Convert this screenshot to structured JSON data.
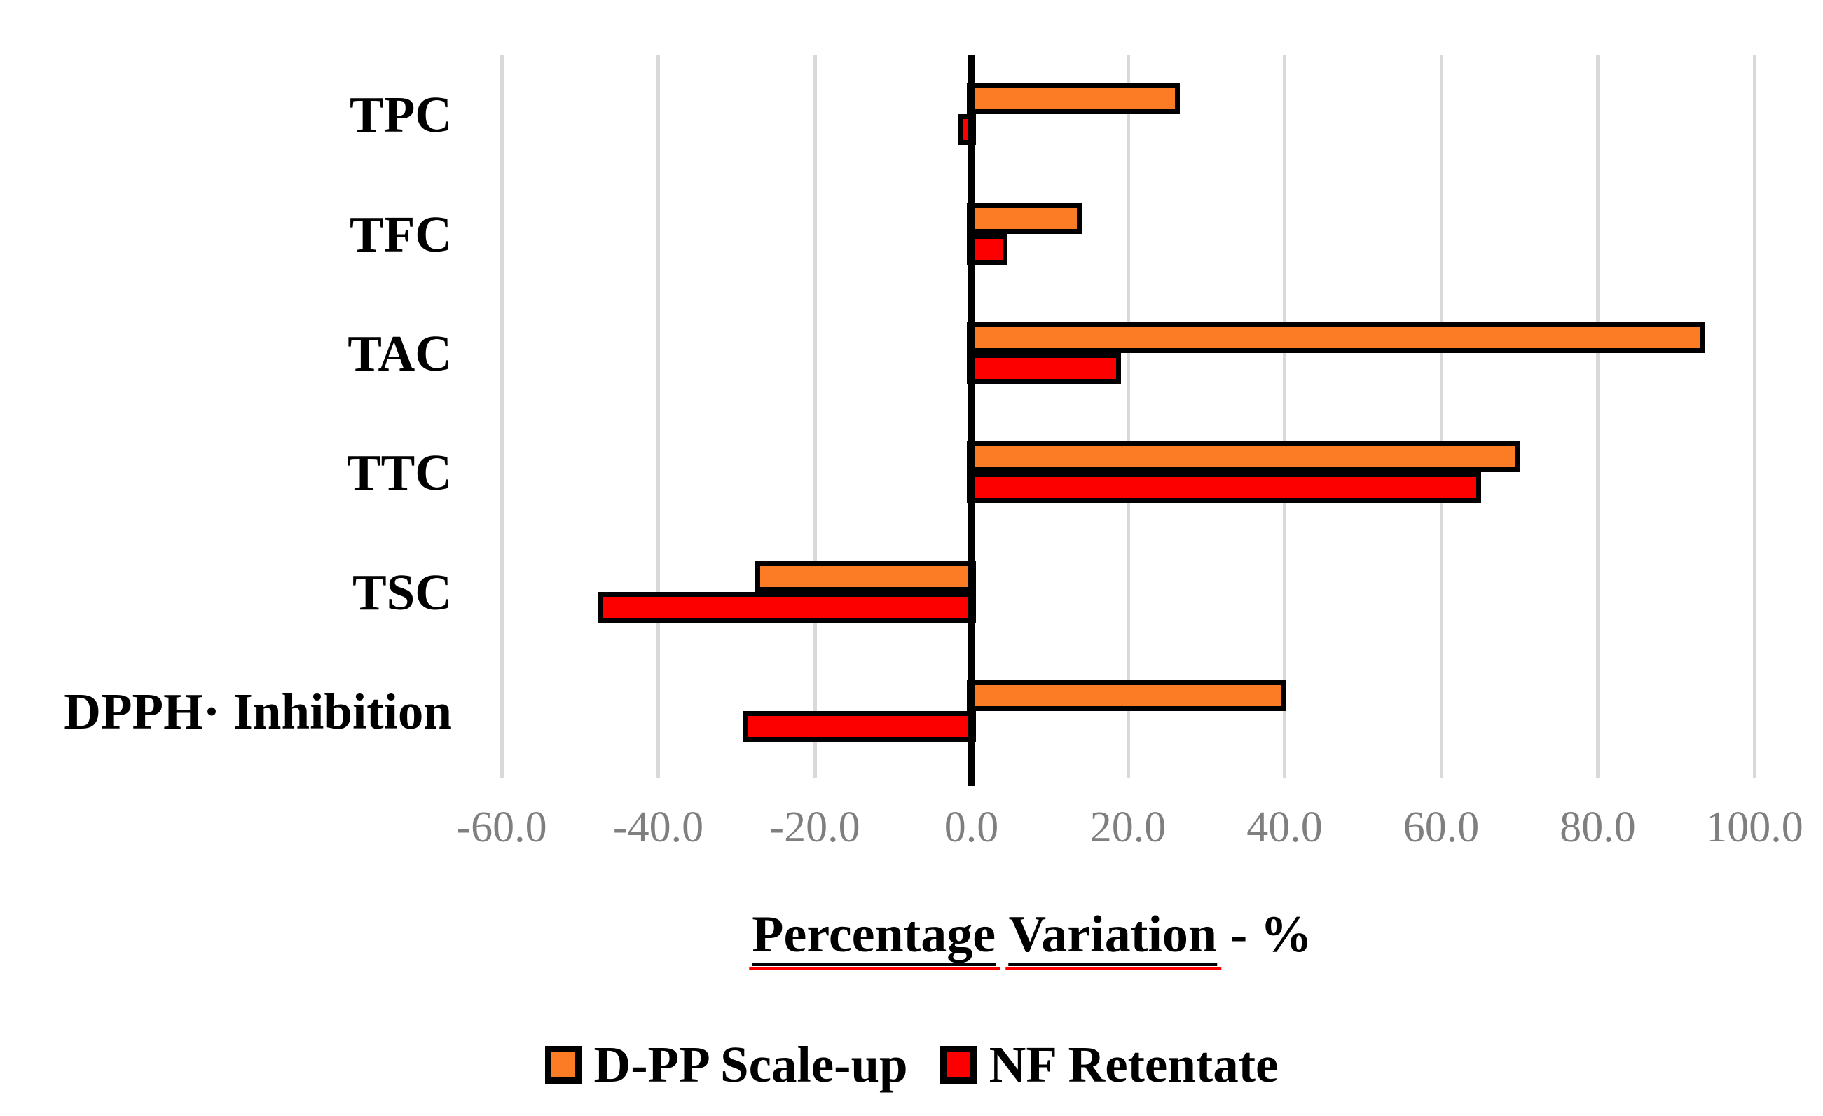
{
  "chart_data": {
    "type": "bar",
    "orientation": "horizontal",
    "title": "",
    "categories": [
      "TPC",
      "TFC",
      "TAC",
      "TTC",
      "TSC",
      "DPPH· Inhibition"
    ],
    "series": [
      {
        "name": "D-PP Scale-up",
        "color": "#FB7C24",
        "values": [
          26.0,
          13.5,
          93.0,
          69.5,
          -27.0,
          39.5
        ]
      },
      {
        "name": "NF Retentate",
        "color": "#FC0000",
        "values": [
          -1.0,
          4.0,
          18.5,
          64.5,
          -47.0,
          -28.5
        ]
      }
    ],
    "xlabel": "Percentage Variation - %",
    "xlabel_underlined_words": [
      "Percentage",
      "Variation"
    ],
    "xlabel_suffix": "- %",
    "xlim": [
      -60,
      100
    ],
    "x_ticks": [
      -60,
      -40,
      -20,
      0,
      20,
      40,
      60,
      80,
      100
    ],
    "x_tick_labels": [
      "-60.0",
      "-40.0",
      "-20.0",
      "0.0",
      "20.0",
      "40.0",
      "60.0",
      "80.0",
      "100.0"
    ],
    "grid": true,
    "legend_position": "bottom",
    "bar_border_color": "#000000",
    "gridline_color": "#D9D9D9",
    "zero_axis_color": "#000000",
    "tick_label_color": "#7F7F7F"
  }
}
